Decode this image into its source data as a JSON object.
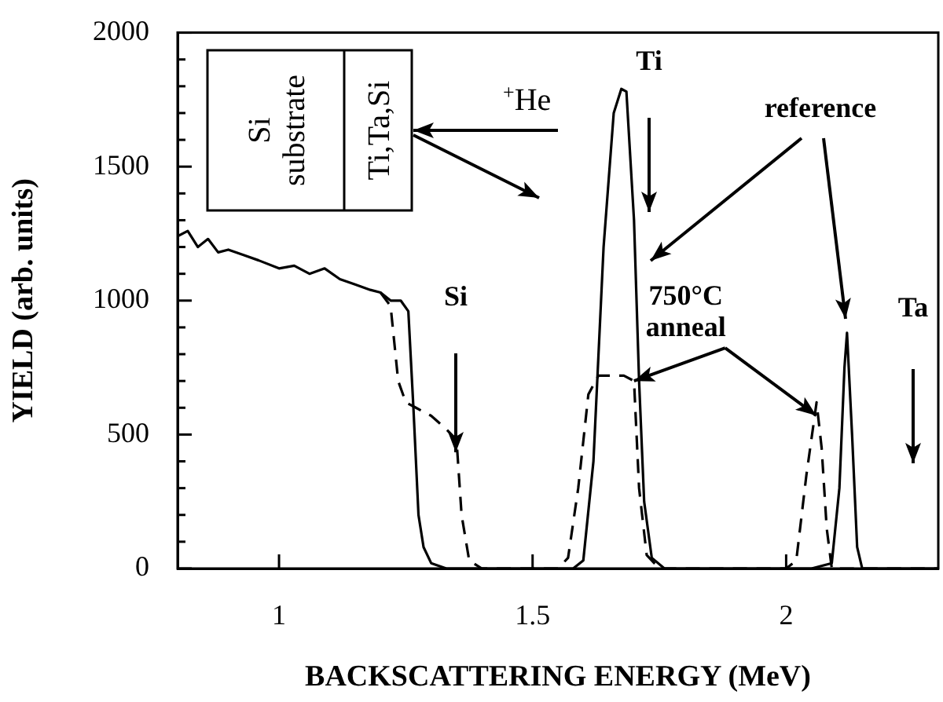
{
  "chart_data": {
    "type": "line",
    "xlabel": "BACKSCATTERING ENERGY (MeV)",
    "ylabel": "YIELD (arb. units)",
    "xlim": [
      0.8,
      2.3
    ],
    "xticks": [
      1,
      1.5,
      2
    ],
    "ylim": [
      0,
      2000
    ],
    "yticks": [
      0,
      {
        "value": 100,
        "label": null
      },
      {
        "value": 200,
        "label": null
      },
      {
        "value": 300,
        "label": null
      },
      {
        "value": 400,
        "label": null
      },
      500,
      {
        "value": 600,
        "label": null
      },
      {
        "value": 700,
        "label": null
      },
      {
        "value": 800,
        "label": null
      },
      {
        "value": 900,
        "label": null
      },
      1000,
      {
        "value": 1100,
        "label": null
      },
      {
        "value": 1200,
        "label": null
      },
      {
        "value": 1300,
        "label": null
      },
      {
        "value": 1400,
        "label": null
      },
      1500,
      {
        "value": 1600,
        "label": null
      },
      {
        "value": 1700,
        "label": null
      },
      {
        "value": 1800,
        "label": null
      },
      {
        "value": 1900,
        "label": null
      },
      2000
    ],
    "grid": false,
    "legend": false,
    "marker": "none",
    "series": [
      {
        "color": "#000000",
        "line_style": "solid",
        "x": [
          0.8,
          0.82,
          0.84,
          0.86,
          0.88,
          0.9,
          0.93,
          0.96,
          1.0,
          1.03,
          1.06,
          1.09,
          1.12,
          1.15,
          1.18,
          1.2,
          1.22,
          1.24,
          1.255,
          1.265,
          1.275,
          1.285,
          1.3,
          1.33,
          1.4,
          1.5,
          1.58,
          1.6,
          1.62,
          1.64,
          1.66,
          1.675,
          1.685,
          1.7,
          1.71,
          1.72,
          1.735,
          1.76,
          1.9,
          2.05,
          2.09,
          2.105,
          2.115,
          2.12,
          2.13,
          2.14,
          2.15,
          2.3
        ],
        "values": [
          1240,
          1260,
          1200,
          1230,
          1180,
          1190,
          1170,
          1150,
          1120,
          1130,
          1100,
          1120,
          1080,
          1060,
          1040,
          1030,
          1000,
          1000,
          960,
          600,
          200,
          80,
          20,
          0,
          0,
          0,
          0,
          30,
          400,
          1200,
          1700,
          1790,
          1780,
          1300,
          700,
          250,
          40,
          0,
          0,
          0,
          20,
          300,
          750,
          880,
          500,
          80,
          0,
          0
        ]
      },
      {
        "color": "#000000",
        "line_style": "dashed",
        "x": [
          1.2,
          1.22,
          1.235,
          1.25,
          1.27,
          1.3,
          1.33,
          1.35,
          1.36,
          1.375,
          1.4,
          1.5,
          1.55,
          1.57,
          1.59,
          1.61,
          1.63,
          1.66,
          1.68,
          1.7,
          1.71,
          1.725,
          1.75,
          2.0,
          2.02,
          2.04,
          2.06,
          2.07,
          2.08,
          2.09,
          2.3
        ],
        "values": [
          1030,
          980,
          700,
          620,
          600,
          570,
          520,
          480,
          200,
          30,
          0,
          0,
          0,
          40,
          300,
          650,
          720,
          720,
          720,
          700,
          300,
          50,
          0,
          0,
          30,
          350,
          620,
          450,
          150,
          0,
          0
        ]
      }
    ],
    "annotations": [
      "Si substrate",
      "Ti,Ta,Si",
      "$^{+}$He",
      "Si",
      "Ti",
      "Ta",
      "reference",
      {
        "text": "750°C\nanneal",
        "x": 1.7,
        "y": 700
      }
    ]
  }
}
